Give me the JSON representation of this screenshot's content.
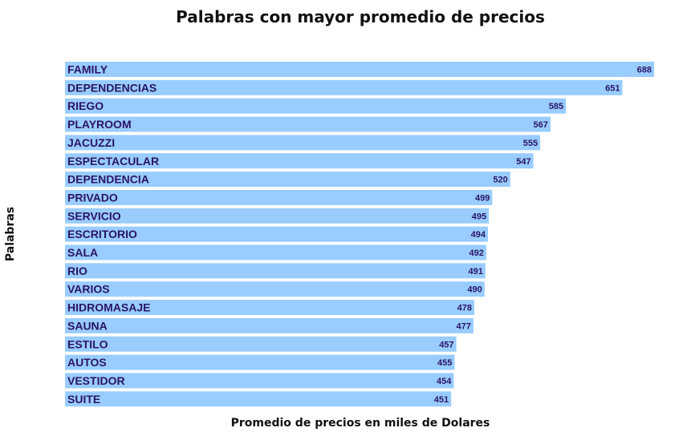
{
  "chart_data": {
    "type": "bar",
    "orientation": "horizontal",
    "title": "Palabras con mayor promedio de precios",
    "xlabel": "Promedio de precios en miles de Dolares",
    "ylabel": "Palabras",
    "categories": [
      "FAMILY",
      "DEPENDENCIAS",
      "RIEGO",
      "PLAYROOM",
      "JACUZZI",
      "ESPECTACULAR",
      "DEPENDENCIA",
      "PRIVADO",
      "SERVICIO",
      "ESCRITORIO",
      "SALA",
      "RIO",
      "VARIOS",
      "HIDROMASAJE",
      "SAUNA",
      "ESTILO",
      "AUTOS",
      "VESTIDOR",
      "SUITE"
    ],
    "values": [
      688,
      651,
      585,
      567,
      555,
      547,
      520,
      499,
      495,
      494,
      492,
      491,
      490,
      478,
      477,
      457,
      455,
      454,
      451
    ],
    "bar_color": "#99ccff",
    "label_color": "#2a1466",
    "grid": false,
    "legend": "none"
  }
}
